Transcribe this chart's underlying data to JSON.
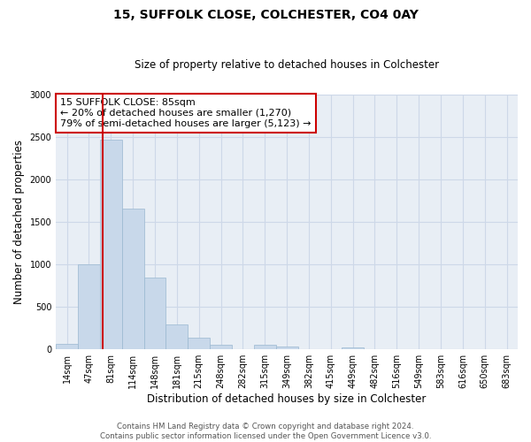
{
  "title": "15, SUFFOLK CLOSE, COLCHESTER, CO4 0AY",
  "subtitle": "Size of property relative to detached houses in Colchester",
  "xlabel": "Distribution of detached houses by size in Colchester",
  "ylabel": "Number of detached properties",
  "bar_color": "#c8d8ea",
  "bar_edge_color": "#9ab8d0",
  "categories": [
    "14sqm",
    "47sqm",
    "81sqm",
    "114sqm",
    "148sqm",
    "181sqm",
    "215sqm",
    "248sqm",
    "282sqm",
    "315sqm",
    "349sqm",
    "382sqm",
    "415sqm",
    "449sqm",
    "482sqm",
    "516sqm",
    "549sqm",
    "583sqm",
    "616sqm",
    "650sqm",
    "683sqm"
  ],
  "values": [
    55,
    1000,
    2470,
    1650,
    840,
    290,
    130,
    50,
    0,
    50,
    30,
    0,
    0,
    20,
    0,
    0,
    0,
    0,
    0,
    0,
    0
  ],
  "property_line_color": "#cc0000",
  "annotation_text": "15 SUFFOLK CLOSE: 85sqm\n← 20% of detached houses are smaller (1,270)\n79% of semi-detached houses are larger (5,123) →",
  "annotation_box_color": "#cc0000",
  "ylim": [
    0,
    3000
  ],
  "yticks": [
    0,
    500,
    1000,
    1500,
    2000,
    2500,
    3000
  ],
  "footer_line1": "Contains HM Land Registry data © Crown copyright and database right 2024.",
  "footer_line2": "Contains public sector information licensed under the Open Government Licence v3.0.",
  "background_color": "#ffffff",
  "grid_color": "#cdd8e8",
  "ax_bg_color": "#e8eef5"
}
